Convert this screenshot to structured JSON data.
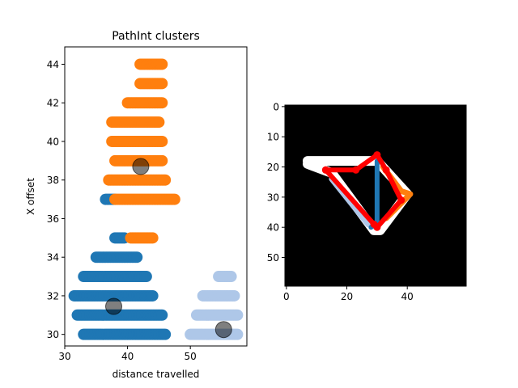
{
  "chart_data": [
    {
      "type": "scatter",
      "title": "PathInt clusters",
      "xlabel": "distance travelled",
      "ylabel": "X offset",
      "xlim": [
        30,
        59
      ],
      "ylim": [
        29.4,
        44.9
      ],
      "xticks": [
        30,
        40,
        50
      ],
      "yticks": [
        30,
        32,
        34,
        36,
        38,
        40,
        42,
        44
      ],
      "grid": false,
      "series": [
        {
          "color": "#1f77b4",
          "rows": [
            {
              "y": 30,
              "x": [
                33,
                46
              ]
            },
            {
              "y": 31,
              "x": [
                32,
                45.5
              ]
            },
            {
              "y": 32,
              "x": [
                31.5,
                44
              ]
            },
            {
              "y": 33,
              "x": [
                33,
                43
              ]
            },
            {
              "y": 34,
              "x": [
                35,
                41.5
              ]
            },
            {
              "y": 35,
              "x": [
                38,
                39.5
              ]
            },
            {
              "y": 37,
              "x": [
                36.5,
                38
              ]
            }
          ],
          "centroid": [
            37.8,
            31.45
          ]
        },
        {
          "color": "#ff7f0e",
          "rows": [
            {
              "y": 35,
              "x": [
                40.5,
                44
              ]
            },
            {
              "y": 37,
              "x": [
                38,
                47.5
              ]
            },
            {
              "y": 38,
              "x": [
                37,
                46
              ]
            },
            {
              "y": 39,
              "x": [
                38,
                45.5
              ]
            },
            {
              "y": 40,
              "x": [
                37.5,
                45.5
              ]
            },
            {
              "y": 41,
              "x": [
                37.5,
                45
              ]
            },
            {
              "y": 42,
              "x": [
                40,
                45.5
              ]
            },
            {
              "y": 43,
              "x": [
                42,
                45.5
              ]
            },
            {
              "y": 44,
              "x": [
                42,
                45.5
              ]
            }
          ],
          "centroid": [
            42.1,
            38.7
          ]
        },
        {
          "color": "#aec7e8",
          "rows": [
            {
              "y": 30,
              "x": [
                50,
                57.5
              ]
            },
            {
              "y": 31,
              "x": [
                51,
                57.5
              ]
            },
            {
              "y": 32,
              "x": [
                52,
                57
              ]
            },
            {
              "y": 33,
              "x": [
                54.5,
                56.5
              ]
            }
          ],
          "centroid": [
            55.3,
            30.25
          ]
        }
      ]
    },
    {
      "type": "heatmap",
      "xlim": [
        -0.5,
        59.5
      ],
      "ylim": [
        59.5,
        -0.5
      ],
      "xticks": [
        0,
        20,
        40
      ],
      "yticks": [
        0,
        10,
        20,
        30,
        40,
        50
      ],
      "background": "#000000",
      "overlays": [
        {
          "color": "#ffffff",
          "points": [
            [
              7,
              18
            ],
            [
              30,
              18
            ],
            [
              40,
              29
            ],
            [
              31,
              41
            ],
            [
              29,
              41
            ],
            [
              15,
              22
            ],
            [
              7,
              19
            ]
          ]
        },
        {
          "color": "#aec7e8",
          "points": [
            [
              15,
              24
            ],
            [
              27,
              39
            ],
            [
              30,
              40
            ]
          ]
        },
        {
          "color": "#1f77b4",
          "points": [
            [
              30,
              18
            ],
            [
              30,
              38
            ],
            [
              28,
              40
            ]
          ]
        },
        {
          "color": "#ff7f0e",
          "points": [
            [
              32,
              20
            ],
            [
              38,
              28
            ],
            [
              41,
              29
            ],
            [
              37,
              33
            ],
            [
              33,
              37
            ]
          ]
        },
        {
          "color": "#ff0000",
          "points": [
            [
              13,
              21
            ],
            [
              23,
              21
            ],
            [
              30,
              16
            ],
            [
              33,
              21
            ],
            [
              38,
              31
            ],
            [
              30,
              40
            ],
            [
              29,
              39
            ],
            [
              13,
              21
            ]
          ]
        }
      ]
    }
  ]
}
